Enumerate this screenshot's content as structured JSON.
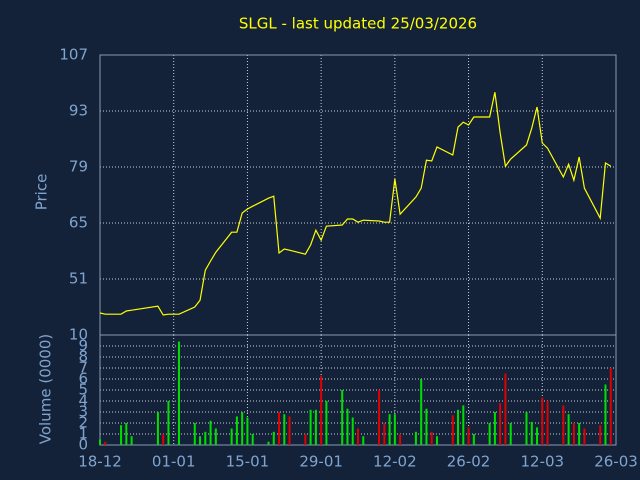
{
  "chart_data": [
    {
      "type": "line",
      "title": "SLGL - last updated 25/03/2026",
      "y_label": "Price",
      "x": [
        "18-12",
        "19-12",
        "22-12",
        "23-12",
        "24-12",
        "29-12",
        "30-12",
        "31-12",
        "02-01",
        "05-01",
        "06-01",
        "07-01",
        "08-01",
        "09-01",
        "12-01",
        "13-01",
        "14-01",
        "15-01",
        "16-01",
        "19-01",
        "20-01",
        "21-01",
        "22-01",
        "23-01",
        "26-01",
        "27-01",
        "28-01",
        "29-01",
        "30-01",
        "02-02",
        "03-02",
        "04-02",
        "05-02",
        "06-02",
        "09-02",
        "10-02",
        "11-02",
        "12-02",
        "13-02",
        "16-02",
        "17-02",
        "18-02",
        "19-02",
        "20-02",
        "23-02",
        "24-02",
        "25-02",
        "26-02",
        "27-02",
        "02-03",
        "03-03",
        "04-03",
        "05-03",
        "06-03",
        "09-03",
        "10-03",
        "11-03",
        "12-03",
        "13-03",
        "16-03",
        "17-03",
        "18-03",
        "19-03",
        "20-03",
        "23-03",
        "24-03",
        "25-03"
      ],
      "series": [
        {
          "name": "Price",
          "color": "#ffff00",
          "values": [
            42.5,
            42.2,
            42.2,
            43,
            43.2,
            44.2,
            42,
            42.2,
            42.2,
            44,
            45.7,
            53.2,
            55.5,
            57.7,
            62.7,
            62.7,
            67.5,
            68.5,
            69.2,
            71.2,
            71.7,
            57.5,
            58.5,
            58.2,
            57.2,
            59.5,
            63.2,
            60.7,
            64.2,
            64.5,
            66,
            66,
            65.2,
            65.7,
            65.5,
            65.2,
            65.2,
            76,
            67.2,
            71.5,
            73.7,
            80.7,
            80.5,
            84,
            82,
            89,
            90.2,
            89.5,
            91.5,
            91.5,
            97.7,
            87.5,
            79.2,
            81,
            84.5,
            88.7,
            94,
            85,
            83.7,
            76.5,
            79.7,
            75.7,
            81.5,
            73.7,
            66.2,
            80,
            79.2
          ]
        }
      ],
      "xlim": [
        "18-12",
        "26-03"
      ],
      "xticks": [
        "18-12",
        "01-01",
        "15-01",
        "29-01",
        "12-02",
        "26-02",
        "12-03",
        "26-03"
      ],
      "ylim": [
        37,
        107
      ],
      "yticks": [
        51,
        65,
        79,
        93,
        107
      ],
      "grid": true
    },
    {
      "type": "bar",
      "y_label": "Volume (0000)",
      "x": [
        "18-12",
        "19-12",
        "22-12",
        "23-12",
        "24-12",
        "29-12",
        "30-12",
        "31-12",
        "02-01",
        "05-01",
        "06-01",
        "07-01",
        "08-01",
        "09-01",
        "12-01",
        "13-01",
        "14-01",
        "15-01",
        "16-01",
        "19-01",
        "20-01",
        "21-01",
        "22-01",
        "23-01",
        "26-01",
        "27-01",
        "28-01",
        "29-01",
        "30-01",
        "02-02",
        "03-02",
        "04-02",
        "05-02",
        "06-02",
        "09-02",
        "10-02",
        "11-02",
        "12-02",
        "13-02",
        "16-02",
        "17-02",
        "18-02",
        "19-02",
        "20-02",
        "23-02",
        "24-02",
        "25-02",
        "26-02",
        "27-02",
        "02-03",
        "03-03",
        "04-03",
        "05-03",
        "06-03",
        "09-03",
        "10-03",
        "11-03",
        "12-03",
        "13-03",
        "16-03",
        "17-03",
        "18-03",
        "19-03",
        "20-03",
        "23-03",
        "24-03",
        "25-03"
      ],
      "values": [
        0.5,
        0.3,
        1.8,
        2,
        0.8,
        3,
        1,
        4,
        9.4,
        2,
        0.8,
        1.2,
        2.2,
        1.5,
        1.5,
        2.6,
        3,
        2.5,
        1,
        0.3,
        1.2,
        3,
        2.8,
        2.6,
        1,
        3.2,
        3.2,
        6.3,
        4,
        5,
        3.3,
        2.5,
        1.5,
        0.8,
        5,
        2,
        2.8,
        2.8,
        1,
        1.2,
        6,
        3.3,
        1.2,
        0.8,
        2.7,
        3.2,
        3.6,
        1.6,
        1,
        2,
        3,
        3.8,
        6.5,
        2,
        3,
        2.1,
        1.6,
        4.3,
        4,
        3.6,
        2.8,
        2,
        2,
        1.5,
        1.8,
        5.5,
        7
      ],
      "up_color": "#00e000",
      "down_color": "#e00000",
      "xlim": [
        "18-12",
        "26-03"
      ],
      "xticks": [
        "18-12",
        "01-01",
        "15-01",
        "29-01",
        "12-02",
        "26-02",
        "12-03",
        "26-03"
      ],
      "ylim": [
        0,
        10
      ],
      "yticks": [
        0,
        1,
        2,
        3,
        4,
        5,
        6,
        7,
        8,
        9,
        10
      ],
      "grid": true
    }
  ]
}
